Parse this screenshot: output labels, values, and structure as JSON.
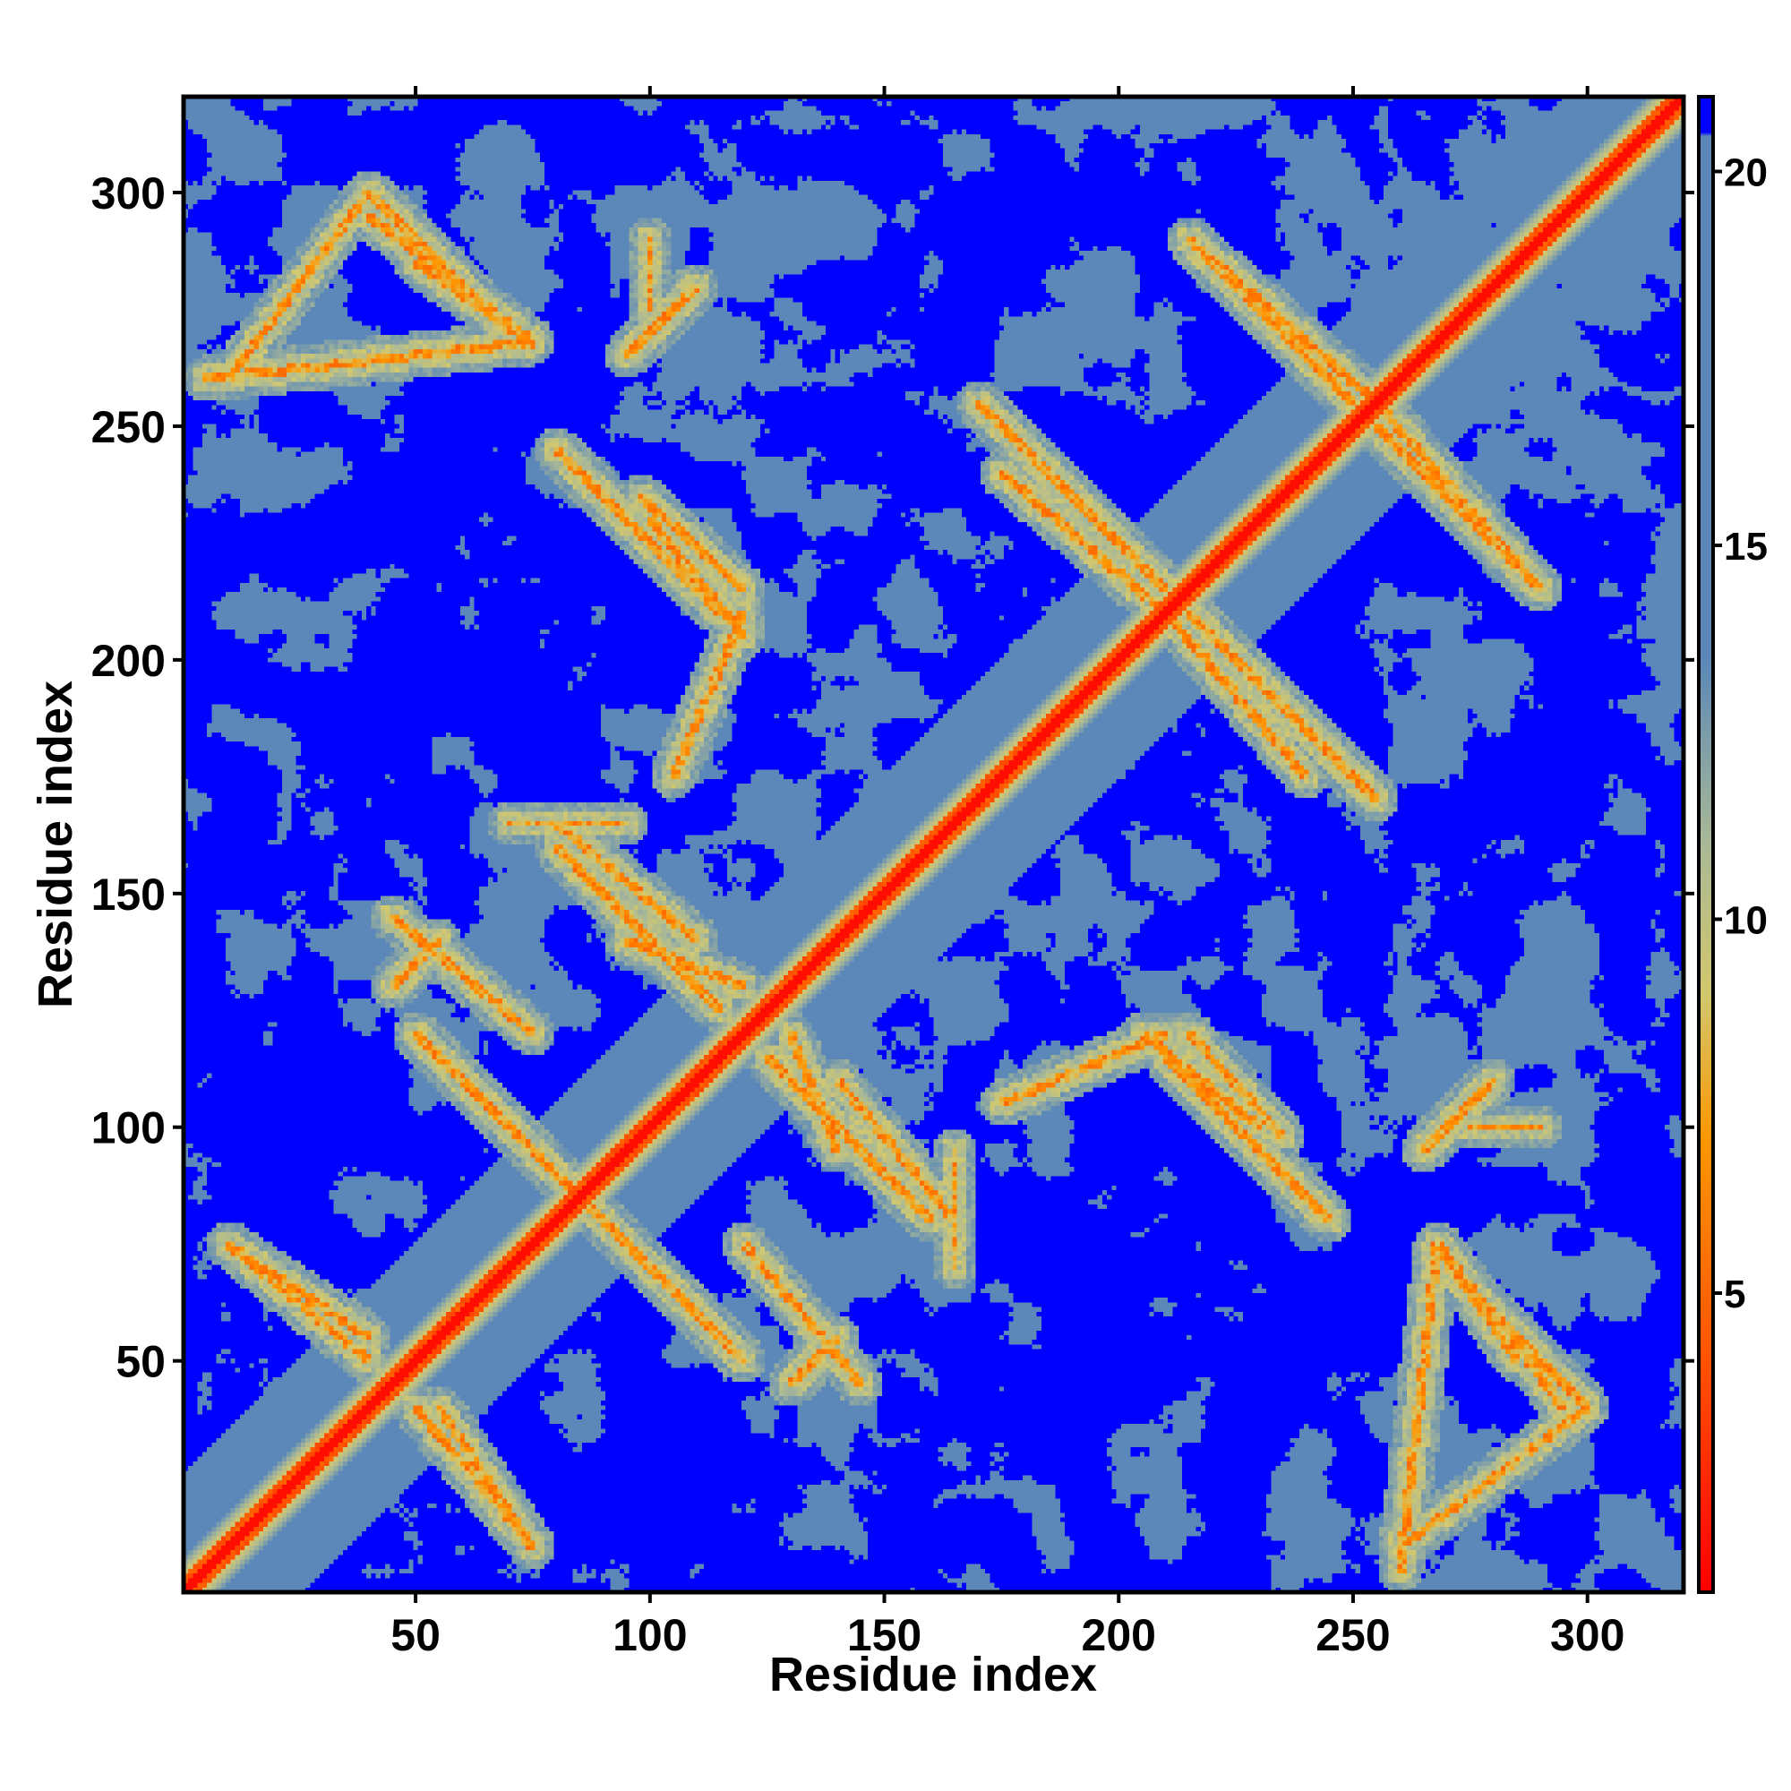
{
  "chart_data": {
    "type": "heatmap",
    "title": "",
    "xlabel": "Residue index",
    "ylabel": "Residue index",
    "xlim": [
      1,
      320
    ],
    "ylim": [
      1,
      320
    ],
    "x_ticks": [
      50,
      100,
      150,
      200,
      250,
      300
    ],
    "y_ticks": [
      50,
      100,
      150,
      200,
      250,
      300
    ],
    "x_tick_labels": [
      "50",
      "100",
      "150",
      "200",
      "250",
      "300"
    ],
    "y_tick_labels": [
      "50",
      "100",
      "150",
      "200",
      "250",
      "300"
    ],
    "n_residues": 320,
    "value_range": [
      1,
      21
    ],
    "colorbar": {
      "ticks": [
        5,
        10,
        15,
        20
      ],
      "tick_labels": [
        "5",
        "10",
        "15",
        "20"
      ],
      "range": [
        1,
        21
      ],
      "colors": {
        "low": "#ff0000",
        "mid_low": "#ff8c00",
        "mid": "#c8c878",
        "high": "#5b88b8",
        "max": "#0000ff"
      }
    },
    "description_features": {
      "main_diagonal": {
        "from": [
          1,
          1
        ],
        "to": [
          320,
          320
        ]
      },
      "antiparallel_bands": [
        {
          "from": [
            5,
            260
          ],
          "to": [
            75,
            268
          ]
        },
        {
          "from": [
            40,
            295
          ],
          "to": [
            75,
            268
          ]
        },
        {
          "from": [
            50,
            285
          ],
          "to": [
            75,
            268
          ]
        },
        {
          "from": [
            98,
            235
          ],
          "to": [
            120,
            215
          ]
        },
        {
          "from": [
            100,
            290
          ],
          "to": [
            100,
            275
          ]
        },
        {
          "from": [
            120,
            205
          ],
          "to": [
            100,
            230
          ]
        },
        {
          "from": [
            95,
            140
          ],
          "to": [
            120,
            130
          ]
        },
        {
          "from": [
            50,
            120
          ],
          "to": [
            90,
            80
          ]
        },
        {
          "from": [
            45,
            130
          ],
          "to": [
            55,
            140
          ]
        },
        {
          "from": [
            75,
            165
          ],
          "to": [
            95,
            165
          ]
        },
        {
          "from": [
            80,
            160
          ],
          "to": [
            115,
            125
          ]
        },
        {
          "from": [
            120,
            75
          ],
          "to": [
            145,
            45
          ]
        },
        {
          "from": [
            140,
            110
          ],
          "to": [
            165,
            80
          ]
        },
        {
          "from": [
            165,
            70
          ],
          "to": [
            165,
            95
          ]
        },
        {
          "from": [
            175,
            240
          ],
          "to": [
            210,
            210
          ]
        },
        {
          "from": [
            215,
            290
          ],
          "to": [
            255,
            255
          ]
        },
        {
          "from": [
            215,
            210
          ],
          "to": [
            255,
            170
          ]
        },
        {
          "from": [
            255,
            250
          ],
          "to": [
            290,
            215
          ]
        },
        {
          "from": [
            175,
            105
          ],
          "to": [
            210,
            120
          ]
        },
        {
          "from": [
            210,
            115
          ],
          "to": [
            245,
            80
          ]
        },
        {
          "from": [
            260,
            10
          ],
          "to": [
            300,
            40
          ]
        },
        {
          "from": [
            270,
            70
          ],
          "to": [
            300,
            40
          ]
        },
        {
          "from": [
            265,
            95
          ],
          "to": [
            280,
            110
          ]
        },
        {
          "from": [
            10,
            75
          ],
          "to": [
            40,
            55
          ]
        },
        {
          "from": [
            50,
            40
          ],
          "to": [
            75,
            10
          ]
        }
      ]
    }
  }
}
